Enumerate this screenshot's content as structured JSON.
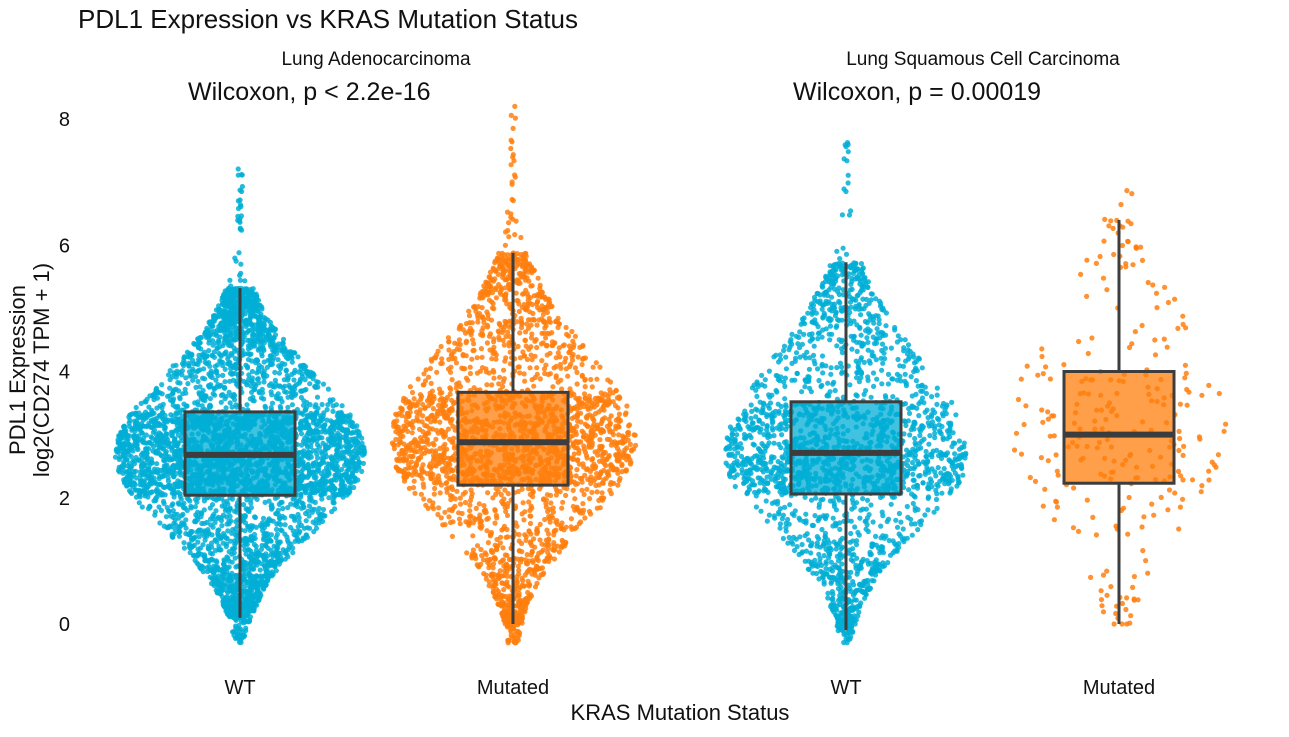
{
  "chart_data": {
    "type": "boxplot",
    "title": "PDL1 Expression vs KRAS Mutation Status",
    "xlabel": "KRAS Mutation Status",
    "ylabel": [
      "PDL1 Expression",
      "log2(CD274 TPM + 1)"
    ],
    "ylim": [
      -0.6,
      8.6
    ],
    "yticks": [
      "0",
      "2",
      "4",
      "6",
      "8"
    ],
    "grid": false,
    "colors": {
      "WT": "#00AED6",
      "Mutated": "#FF7F0E",
      "box_line": "#3d3d3d"
    },
    "panels": [
      {
        "facet": "Lung Adenocarcinoma",
        "annotation": "Wilcoxon, p < 2.2e-16",
        "groups": [
          {
            "label": "WT",
            "whisker_low": 0.1,
            "q1": 2.04,
            "median": 2.68,
            "q3": 3.36,
            "whisker_high": 5.32,
            "min": -0.3,
            "max": 7.25
          },
          {
            "label": "Mutated",
            "whisker_low": 0.0,
            "q1": 2.2,
            "median": 2.88,
            "q3": 3.67,
            "whisker_high": 5.88,
            "min": -0.3,
            "max": 8.3
          }
        ]
      },
      {
        "facet": "Lung Squamous Cell Carcinoma",
        "annotation": "Wilcoxon, p = 0.00019",
        "groups": [
          {
            "label": "WT",
            "whisker_low": -0.1,
            "q1": 2.06,
            "median": 2.71,
            "q3": 3.52,
            "whisker_high": 5.73,
            "min": -0.3,
            "max": 7.7
          },
          {
            "label": "Mutated",
            "whisker_low": 0.0,
            "q1": 2.23,
            "median": 3.0,
            "q3": 4.0,
            "whisker_high": 6.4,
            "min": 0.0,
            "max": 6.9
          }
        ]
      }
    ]
  }
}
